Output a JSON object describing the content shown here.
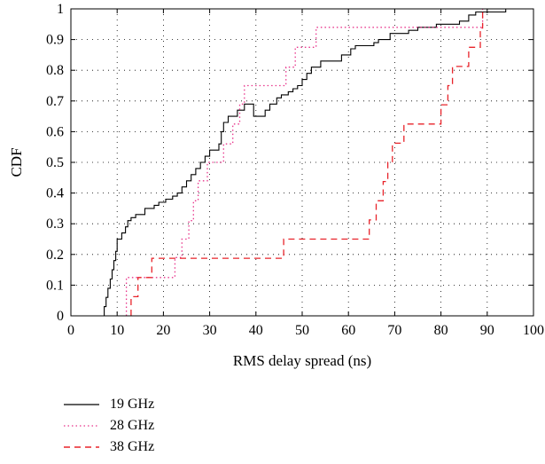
{
  "chart_data": {
    "type": "line",
    "title": "",
    "xlabel": "RMS delay spread (ns)",
    "ylabel": "CDF",
    "xlim": [
      0,
      100
    ],
    "ylim": [
      0,
      1
    ],
    "xticks": [
      0,
      10,
      20,
      30,
      40,
      50,
      60,
      70,
      80,
      90,
      100
    ],
    "yticks": [
      0,
      0.1,
      0.2,
      0.3,
      0.4,
      0.5,
      0.6,
      0.7,
      0.8,
      0.9,
      1
    ],
    "xtick_labels": [
      "0",
      "10",
      "20",
      "30",
      "40",
      "50",
      "60",
      "70",
      "80",
      "90",
      "100"
    ],
    "ytick_labels": [
      "0",
      "0.1",
      "0.2",
      "0.3",
      "0.4",
      "0.5",
      "0.6",
      "0.7",
      "0.8",
      "0.9",
      "1"
    ],
    "grid": true,
    "legend_position": "below",
    "series": [
      {
        "name": "19 GHz",
        "color": "#000000",
        "dash": "solid",
        "x": [
          6.5,
          7.2,
          7.6,
          8.0,
          8.5,
          8.9,
          9.3,
          9.7,
          10.0,
          11.0,
          11.8,
          12.3,
          13.0,
          14.0,
          16.0,
          18.0,
          19.0,
          20.5,
          22.0,
          23.0,
          24.0,
          25.0,
          26.0,
          27.0,
          28.0,
          29.0,
          30.0,
          32.0,
          32.5,
          33.0,
          34.0,
          36.0,
          37.5,
          39.5,
          42.0,
          43.0,
          44.5,
          45.5,
          47.0,
          48.0,
          49.0,
          50.0,
          51.0,
          52.0,
          54.0,
          58.5,
          60.5,
          61.5,
          65.5,
          66.5,
          69.0,
          73.0,
          75.0,
          79.0,
          84.0,
          86.0,
          87.5,
          94.0
        ],
        "y": [
          0.0,
          0.03,
          0.06,
          0.09,
          0.12,
          0.15,
          0.18,
          0.21,
          0.25,
          0.27,
          0.29,
          0.31,
          0.32,
          0.33,
          0.35,
          0.36,
          0.37,
          0.38,
          0.39,
          0.4,
          0.42,
          0.44,
          0.46,
          0.48,
          0.5,
          0.52,
          0.54,
          0.56,
          0.6,
          0.63,
          0.65,
          0.67,
          0.69,
          0.65,
          0.67,
          0.69,
          0.71,
          0.72,
          0.73,
          0.74,
          0.75,
          0.77,
          0.79,
          0.81,
          0.83,
          0.85,
          0.87,
          0.88,
          0.89,
          0.9,
          0.92,
          0.93,
          0.94,
          0.95,
          0.96,
          0.98,
          0.99,
          1.0
        ],
        "y_note_free": true
      },
      {
        "name": "28 GHz",
        "color": "#e8338a",
        "dash": "dotted",
        "x": [
          12.0,
          14.0,
          22.5,
          24.0,
          25.5,
          26.5,
          27.5,
          28.5,
          29.5,
          31.0,
          32.0,
          33.0,
          35.0,
          36.5,
          37.5,
          38.5,
          40.0,
          44.0,
          46.5,
          48.5,
          51.0,
          53.0,
          54.5,
          87.0,
          89.0
        ],
        "y": [
          0.125,
          0.125,
          0.19,
          0.25,
          0.31,
          0.375,
          0.44,
          0.44,
          0.5,
          0.5,
          0.5,
          0.56,
          0.625,
          0.69,
          0.75,
          0.75,
          0.75,
          0.75,
          0.81,
          0.875,
          0.875,
          0.94,
          0.94,
          0.94,
          1.0
        ]
      },
      {
        "name": "38 GHz",
        "color": "#e8232a",
        "dash": "dashed",
        "x": [
          13.0,
          14.5,
          16.0,
          17.5,
          41.5,
          46.0,
          64.5,
          66.0,
          67.5,
          68.5,
          69.5,
          70.5,
          72.0,
          73.0,
          77.0,
          80.0,
          81.5,
          82.5,
          83.5,
          85.0,
          86.0,
          87.5,
          88.5,
          89.0
        ],
        "y": [
          0.0625,
          0.125,
          0.125,
          0.1875,
          0.1875,
          0.25,
          0.3125,
          0.375,
          0.4375,
          0.5,
          0.5625,
          0.5625,
          0.625,
          0.625,
          0.625,
          0.6875,
          0.75,
          0.8125,
          0.8125,
          0.8125,
          0.875,
          0.875,
          0.9375,
          1.0
        ]
      }
    ]
  }
}
